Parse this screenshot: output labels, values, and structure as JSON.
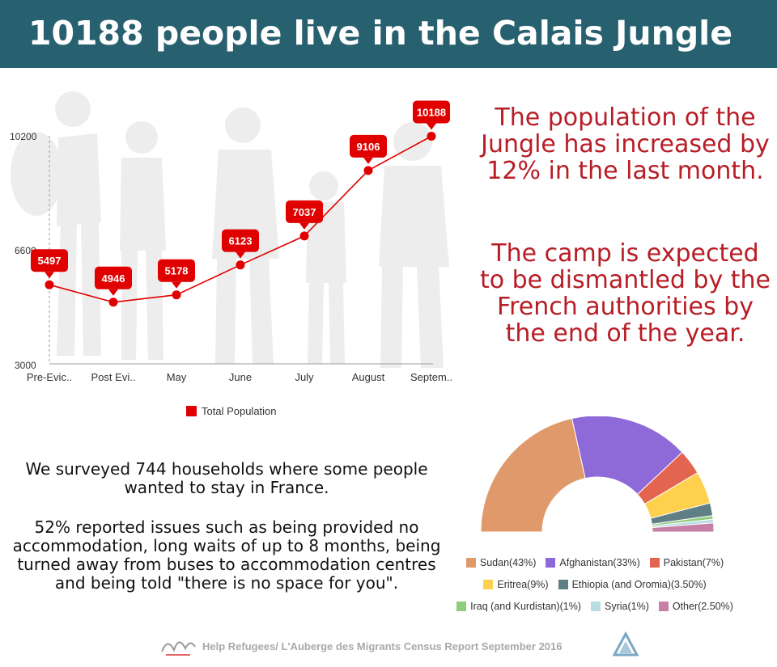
{
  "header": {
    "title": "10188 people live in the Calais Jungle"
  },
  "chart_data": [
    {
      "type": "line",
      "categories": [
        "Pre-Evic..",
        "Post Evi..",
        "May",
        "June",
        "July",
        "August",
        "Septem.."
      ],
      "series": [
        {
          "name": "Total Population",
          "values": [
            5497,
            4946,
            5178,
            6123,
            7037,
            9106,
            10188
          ]
        }
      ],
      "ylim": [
        3000,
        10200
      ],
      "yticks": [
        "3000",
        "6600",
        "10200"
      ],
      "color": "#e00000",
      "legend_position": "bottom"
    },
    {
      "type": "pie",
      "subtype": "semi-donut",
      "slices": [
        {
          "label": "Sudan(43%)",
          "value": 43,
          "color": "#e0996a"
        },
        {
          "label": "Afghanistan(33%)",
          "value": 33,
          "color": "#8e6ad8"
        },
        {
          "label": "Pakistan(7%)",
          "value": 7,
          "color": "#e4654f"
        },
        {
          "label": "Eritrea(9%)",
          "value": 9,
          "color": "#ffd04d"
        },
        {
          "label": "Ethiopia (and Oromia)(3.50%)",
          "value": 3.5,
          "color": "#5f7f85"
        },
        {
          "label": "Iraq (and Kurdistan)(1%)",
          "value": 1,
          "color": "#8fcc7e"
        },
        {
          "label": "Syria(1%)",
          "value": 1,
          "color": "#b9dce3"
        },
        {
          "label": "Other(2.50%)",
          "value": 2.5,
          "color": "#c77fa6"
        }
      ],
      "legend_position": "bottom"
    }
  ],
  "text": {
    "red_1": "The population of the Jungle has increased by 12% in the last month.",
    "red_2": "The camp is expected to be dismantled by the French authorities by the end of the year.",
    "black_1": "We surveyed 744 households where some people wanted to stay in France.",
    "black_2": "52% reported issues such as being provided no accommodation, long waits of up to 8 months, being turned away from buses to accommodation centres and being told \"there is no space for you\"."
  },
  "footer": {
    "text": "Help Refugees/ L'Auberge des Migrants Census Report September 2016"
  },
  "colors": {
    "banner": "#27606f",
    "highlight": "#b81d26",
    "series": "#e00000",
    "footer_text": "#a9a9a9"
  }
}
